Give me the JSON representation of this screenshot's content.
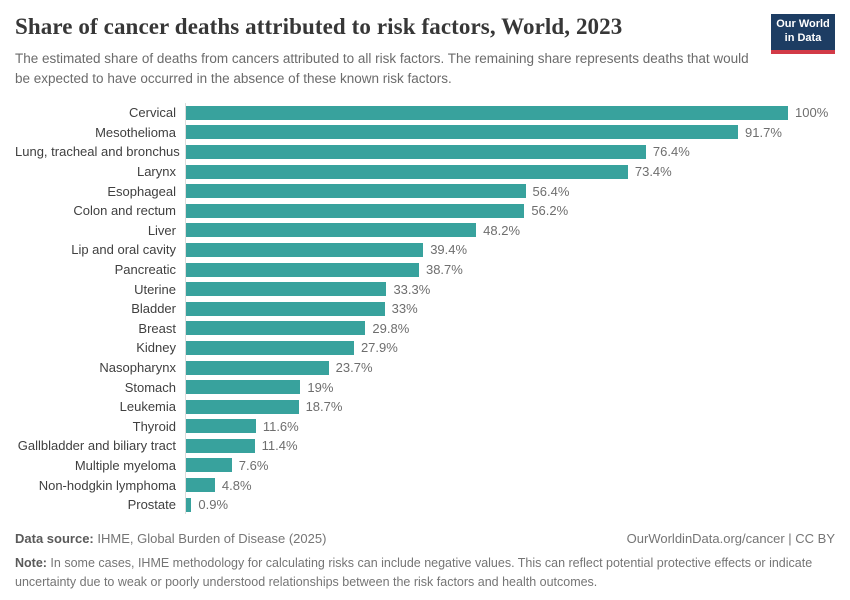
{
  "header": {
    "title": "Share of cancer deaths attributed to risk factors, World, 2023",
    "subtitle": "The estimated share of deaths from cancers attributed to all risk factors. The remaining share represents deaths that would be expected to have occurred in the absence of these known risk factors.",
    "logo": {
      "line1": "Our World",
      "line2": "in Data"
    }
  },
  "chart_data": {
    "type": "bar",
    "orientation": "horizontal",
    "title": "Share of cancer deaths attributed to risk factors, World, 2023",
    "categories": [
      "Cervical",
      "Mesothelioma",
      "Lung, tracheal and bronchus",
      "Larynx",
      "Esophageal",
      "Colon and rectum",
      "Liver",
      "Lip and oral cavity",
      "Pancreatic",
      "Uterine",
      "Bladder",
      "Breast",
      "Kidney",
      "Nasopharynx",
      "Stomach",
      "Leukemia",
      "Thyroid",
      "Gallbladder and biliary tract",
      "Multiple myeloma",
      "Non-hodgkin lymphoma",
      "Prostate"
    ],
    "values": [
      100,
      91.7,
      76.4,
      73.4,
      56.4,
      56.2,
      48.2,
      39.4,
      38.7,
      33.3,
      33,
      29.8,
      27.9,
      23.7,
      19,
      18.7,
      11.6,
      11.4,
      7.6,
      4.8,
      0.9
    ],
    "value_labels": [
      "100%",
      "91.7%",
      "76.4%",
      "73.4%",
      "56.4%",
      "56.2%",
      "48.2%",
      "39.4%",
      "38.7%",
      "33.3%",
      "33%",
      "29.8%",
      "27.9%",
      "23.7%",
      "19%",
      "18.7%",
      "11.6%",
      "11.4%",
      "7.6%",
      "4.8%",
      "0.9%"
    ],
    "xlim": [
      0,
      100
    ],
    "grid": false,
    "legend": "none",
    "bar_color": "#38a29d",
    "value_label_position": "right-of-bar"
  },
  "footer": {
    "datasource_label": "Data source:",
    "datasource_text": " IHME, Global Burden of Disease (2025)",
    "cite": "OurWorldinData.org/cancer | CC BY",
    "note_label": "Note:",
    "note_text": " In some cases, IHME methodology for calculating risks can include negative values. This can reflect potential protective effects or indicate uncertainty due to weak or poorly understood relationships between the risk factors and health outcomes."
  },
  "colors": {
    "bar": "#38a29d",
    "logo_bg": "#1d3d63",
    "logo_accent": "#d23a47",
    "title_text": "#373737",
    "body_text": "#6b6b6b"
  }
}
